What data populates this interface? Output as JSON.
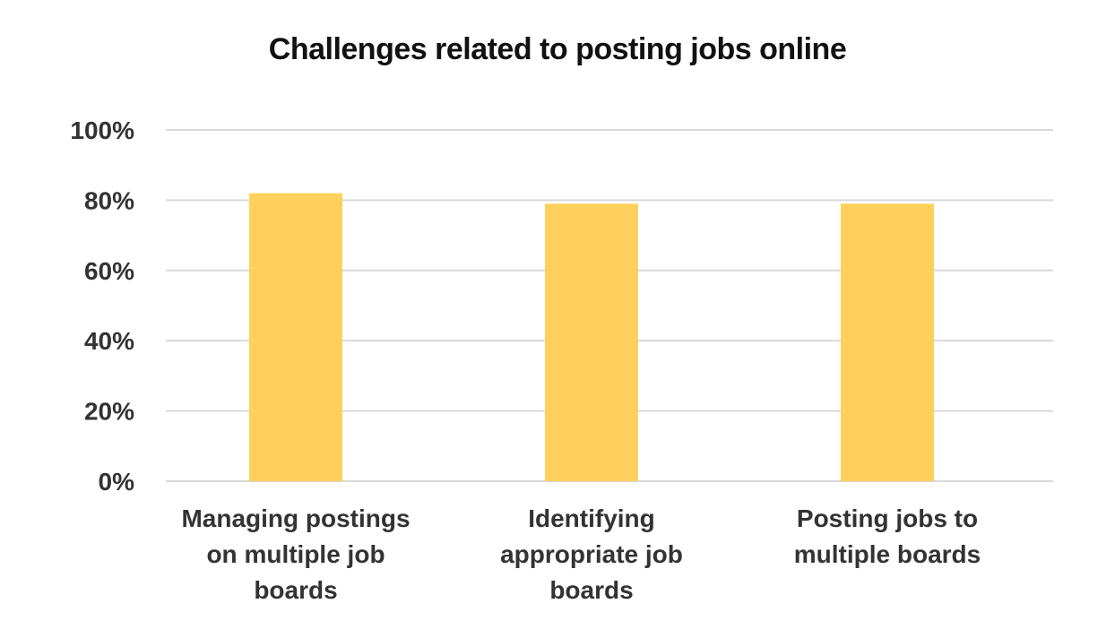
{
  "chart_data": {
    "type": "bar",
    "title": "Challenges related to posting jobs online",
    "categories": [
      [
        "Managing postings",
        "on multiple job",
        "boards"
      ],
      [
        "Identifying",
        "appropriate job",
        "boards"
      ],
      [
        "Posting jobs to",
        "multiple boards"
      ]
    ],
    "values": [
      82,
      79,
      79
    ],
    "ylim": [
      0,
      100
    ],
    "yticks": [
      "0%",
      "20%",
      "40%",
      "60%",
      "80%",
      "100%"
    ],
    "ytick_values": [
      0,
      20,
      40,
      60,
      80,
      100
    ],
    "xlabel": "",
    "ylabel": "",
    "grid": true,
    "legend": "none",
    "bar_color": "#FFD05C",
    "grid_color": "#D9D9D9"
  }
}
